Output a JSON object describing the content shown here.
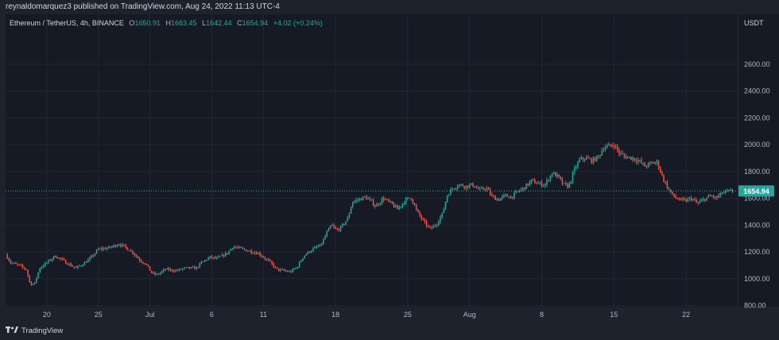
{
  "header": {
    "published_text": "reynaldomarquez3 published on TradingView.com, Aug 24, 2022 11:13 UTC-4"
  },
  "legend": {
    "symbol": "Ethereum / TetherUS, 4h, BINANCE",
    "open_label": "O",
    "open": "1650.91",
    "high_label": "H",
    "high": "1663.45",
    "low_label": "L",
    "low": "1642.44",
    "close_label": "C",
    "close": "1654.94",
    "change": "+4.02 (+0.24%)"
  },
  "footer": {
    "brand": "TradingView",
    "logo_icon": "tradingview-logo-icon"
  },
  "colors": {
    "up": "#26a69a",
    "down": "#ef5350",
    "grid": "#232734",
    "background": "#161a25"
  },
  "chart_data": {
    "type": "candlestick",
    "title": "Ethereum / TetherUS, 4h, BINANCE",
    "currency_label": "USDT",
    "interval": "4h",
    "ylim": [
      700,
      2900
    ],
    "y_ticks": [
      800,
      1000,
      1200,
      1400,
      1600,
      1800,
      2000,
      2200,
      2400,
      2600
    ],
    "y_tick_labels": [
      "800.00",
      "1000.00",
      "1200.00",
      "1400.00",
      "1600.00",
      "1800.00",
      "2000.00",
      "2200.00",
      "2400.00",
      "2600.00"
    ],
    "x_ticks": [
      {
        "label": "20",
        "day": 20
      },
      {
        "label": "25",
        "day": 25
      },
      {
        "label": "Jul",
        "day": 30
      },
      {
        "label": "6",
        "day": 36
      },
      {
        "label": "11",
        "day": 41
      },
      {
        "label": "18",
        "day": 48
      },
      {
        "label": "25",
        "day": 55
      },
      {
        "label": "Aug",
        "day": 61
      },
      {
        "label": "8",
        "day": 68
      },
      {
        "label": "15",
        "day": 75
      },
      {
        "label": "22",
        "day": 82
      }
    ],
    "last_price": 1654.94,
    "last_price_label": "1654.94",
    "close_path": [
      [
        16.0,
        1180
      ],
      [
        16.5,
        1120
      ],
      [
        17.3,
        1100
      ],
      [
        18.0,
        1070
      ],
      [
        18.4,
        960
      ],
      [
        18.8,
        960
      ],
      [
        19.3,
        1080
      ],
      [
        20.0,
        1120
      ],
      [
        20.8,
        1170
      ],
      [
        21.5,
        1140
      ],
      [
        22.3,
        1100
      ],
      [
        22.8,
        1080
      ],
      [
        23.5,
        1110
      ],
      [
        24.2,
        1150
      ],
      [
        25.0,
        1220
      ],
      [
        26.0,
        1230
      ],
      [
        27.0,
        1260
      ],
      [
        27.5,
        1240
      ],
      [
        28.3,
        1200
      ],
      [
        29.0,
        1140
      ],
      [
        29.6,
        1110
      ],
      [
        30.2,
        1040
      ],
      [
        30.7,
        1030
      ],
      [
        31.5,
        1070
      ],
      [
        32.5,
        1060
      ],
      [
        33.5,
        1080
      ],
      [
        34.5,
        1080
      ],
      [
        35.0,
        1120
      ],
      [
        35.8,
        1160
      ],
      [
        36.5,
        1150
      ],
      [
        37.5,
        1190
      ],
      [
        38.0,
        1240
      ],
      [
        38.5,
        1230
      ],
      [
        39.5,
        1210
      ],
      [
        40.5,
        1190
      ],
      [
        41.2,
        1150
      ],
      [
        41.7,
        1120
      ],
      [
        42.3,
        1070
      ],
      [
        43.0,
        1060
      ],
      [
        43.6,
        1050
      ],
      [
        44.3,
        1090
      ],
      [
        44.9,
        1170
      ],
      [
        45.4,
        1200
      ],
      [
        46.0,
        1230
      ],
      [
        46.6,
        1250
      ],
      [
        47.2,
        1350
      ],
      [
        47.6,
        1400
      ],
      [
        48.1,
        1360
      ],
      [
        48.5,
        1380
      ],
      [
        49.2,
        1450
      ],
      [
        49.6,
        1570
      ],
      [
        50.2,
        1590
      ],
      [
        50.9,
        1610
      ],
      [
        51.4,
        1580
      ],
      [
        51.9,
        1540
      ],
      [
        52.6,
        1600
      ],
      [
        53.4,
        1560
      ],
      [
        54.0,
        1520
      ],
      [
        54.7,
        1580
      ],
      [
        55.3,
        1610
      ],
      [
        55.9,
        1500
      ],
      [
        56.6,
        1420
      ],
      [
        57.2,
        1370
      ],
      [
        57.8,
        1410
      ],
      [
        58.4,
        1490
      ],
      [
        58.8,
        1620
      ],
      [
        59.4,
        1680
      ],
      [
        60.0,
        1700
      ],
      [
        60.6,
        1690
      ],
      [
        61.3,
        1700
      ],
      [
        62.0,
        1660
      ],
      [
        62.6,
        1680
      ],
      [
        63.2,
        1610
      ],
      [
        63.8,
        1590
      ],
      [
        64.4,
        1620
      ],
      [
        65.0,
        1610
      ],
      [
        65.7,
        1650
      ],
      [
        66.3,
        1680
      ],
      [
        67.0,
        1730
      ],
      [
        67.7,
        1710
      ],
      [
        68.3,
        1700
      ],
      [
        69.0,
        1790
      ],
      [
        69.6,
        1760
      ],
      [
        70.1,
        1700
      ],
      [
        70.6,
        1690
      ],
      [
        71.2,
        1820
      ],
      [
        71.7,
        1890
      ],
      [
        72.3,
        1900
      ],
      [
        72.9,
        1880
      ],
      [
        73.5,
        1910
      ],
      [
        74.0,
        1980
      ],
      [
        74.6,
        1990
      ],
      [
        75.0,
        2000
      ],
      [
        75.5,
        1940
      ],
      [
        76.1,
        1910
      ],
      [
        76.8,
        1900
      ],
      [
        77.4,
        1880
      ],
      [
        78.0,
        1840
      ],
      [
        78.6,
        1860
      ],
      [
        79.2,
        1870
      ],
      [
        79.7,
        1760
      ],
      [
        80.2,
        1680
      ],
      [
        80.7,
        1620
      ],
      [
        81.3,
        1590
      ],
      [
        81.9,
        1580
      ],
      [
        82.5,
        1600
      ],
      [
        83.1,
        1560
      ],
      [
        83.7,
        1590
      ],
      [
        84.4,
        1620
      ],
      [
        84.9,
        1600
      ],
      [
        85.5,
        1640
      ],
      [
        86.0,
        1650
      ],
      [
        86.6,
        1654.94
      ]
    ]
  }
}
